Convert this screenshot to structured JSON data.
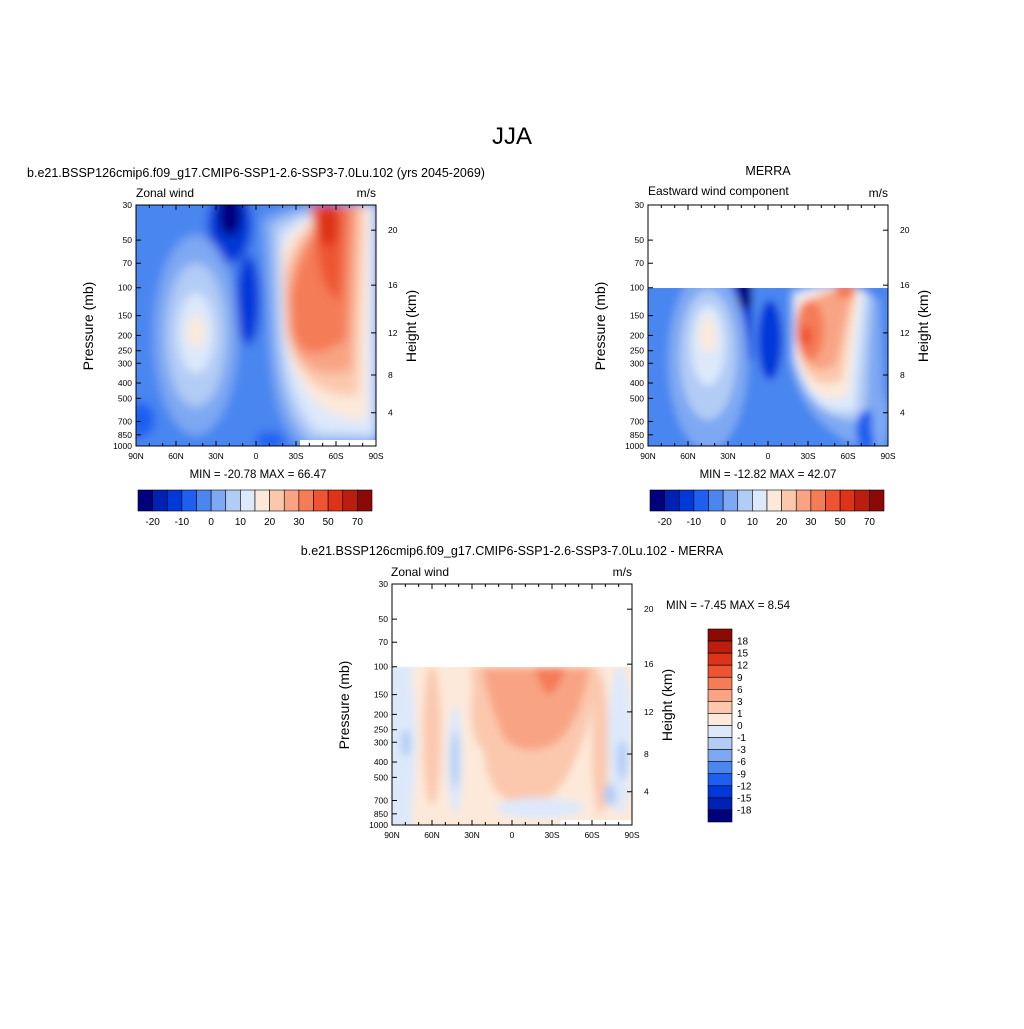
{
  "figure": {
    "title": "JJA"
  },
  "panels": [
    {
      "id": "model",
      "title": "b.e21.BSSP126cmip6.f09_g17.CMIP6-SSP1-2.6-SSP3-7.0Lu.102 (yrs 2045-2069)",
      "left_label": "Zonal wind",
      "right_label": "m/s",
      "ylabel": "Pressure (mb)",
      "y2label": "Height (km)",
      "stats": "MIN = -20.78  MAX =  66.47"
    },
    {
      "id": "obs",
      "title": "MERRA",
      "left_label": "Eastward wind component",
      "right_label": "m/s",
      "ylabel": "Pressure (mb)",
      "y2label": "Height (km)",
      "stats": "MIN = -12.82  MAX =  42.07"
    },
    {
      "id": "diff",
      "title": "b.e21.BSSP126cmip6.f09_g17.CMIP6-SSP1-2.6-SSP3-7.0Lu.102 - MERRA",
      "left_label": "Zonal wind",
      "right_label": "m/s",
      "ylabel": "Pressure (mb)",
      "y2label": "Height (km)",
      "stats": "MIN =  -7.45  MAX =   8.54"
    }
  ],
  "axes": {
    "x_ticks": [
      "90N",
      "60N",
      "30N",
      "0",
      "30S",
      "60S",
      "90S"
    ],
    "pressure_ticks": [
      "30",
      "50",
      "70",
      "100",
      "150",
      "200",
      "250",
      "300",
      "400",
      "500",
      "700",
      "850",
      "1000"
    ],
    "height_ticks": [
      "20",
      "16",
      "12",
      "8",
      "4"
    ]
  },
  "colorbars": {
    "main": {
      "labels": [
        "-20",
        "-10",
        "0",
        "10",
        "20",
        "30",
        "50",
        "70"
      ],
      "colors": [
        "#00007f",
        "#0021b3",
        "#0039d9",
        "#1e5ef0",
        "#4a86f0",
        "#7ea8f2",
        "#b2ccf5",
        "#dde9fb",
        "#fde9d9",
        "#fbc8ae",
        "#f8a484",
        "#f47c57",
        "#ee5432",
        "#dd3316",
        "#bb1e0c",
        "#8c0a06"
      ]
    },
    "diff": {
      "labels": [
        "18",
        "15",
        "12",
        "9",
        "6",
        "3",
        "1",
        "0",
        "-1",
        "-3",
        "-6",
        "-9",
        "-12",
        "-15",
        "-18"
      ],
      "colors": [
        "#8c0a06",
        "#bb1e0c",
        "#dd3316",
        "#ee5432",
        "#f47c57",
        "#f8a484",
        "#fbc8ae",
        "#fde9d9",
        "#dde9fb",
        "#b2ccf5",
        "#7ea8f2",
        "#4a86f0",
        "#1e5ef0",
        "#0039d9",
        "#0021b3",
        "#00007f"
      ]
    }
  },
  "chart_data": [
    {
      "type": "heatmap",
      "title": "b.e21.BSSP126cmip6.f09_g17.CMIP6-SSP1-2.6-SSP3-7.0Lu.102 (yrs 2045-2069)",
      "xlabel": "",
      "ylabel": "Pressure (mb)",
      "y2label": "Height (km)",
      "x": [
        "90N",
        "60N",
        "30N",
        "0",
        "30S",
        "60S",
        "90S"
      ],
      "y": [
        30,
        50,
        70,
        100,
        150,
        200,
        250,
        300,
        400,
        500,
        700,
        850,
        1000
      ],
      "value_unit": "m/s",
      "min": -20.78,
      "max": 66.47
    },
    {
      "type": "heatmap",
      "title": "MERRA",
      "ylabel": "Pressure (mb)",
      "y2label": "Height (km)",
      "x": [
        "90N",
        "60N",
        "30N",
        "0",
        "30S",
        "60S",
        "90S"
      ],
      "y": [
        100,
        150,
        200,
        250,
        300,
        400,
        500,
        700,
        850,
        1000
      ],
      "value_unit": "m/s",
      "min": -12.82,
      "max": 42.07
    },
    {
      "type": "heatmap",
      "title": "b.e21.BSSP126cmip6.f09_g17.CMIP6-SSP1-2.6-SSP3-7.0Lu.102 - MERRA",
      "ylabel": "Pressure (mb)",
      "y2label": "Height (km)",
      "x": [
        "90N",
        "60N",
        "30N",
        "0",
        "30S",
        "60S",
        "90S"
      ],
      "y": [
        100,
        150,
        200,
        250,
        300,
        400,
        500,
        700,
        850,
        1000
      ],
      "value_unit": "m/s",
      "min": -7.45,
      "max": 8.54
    }
  ]
}
